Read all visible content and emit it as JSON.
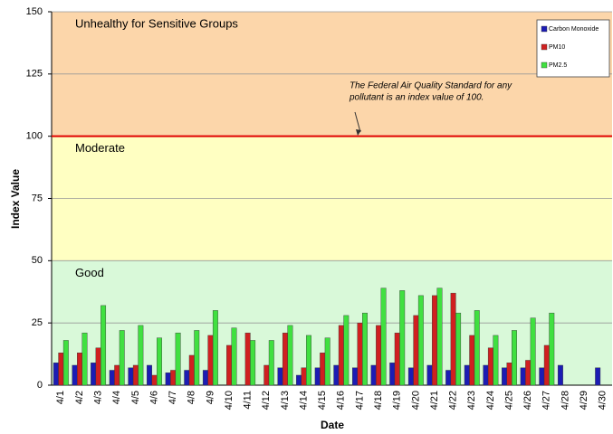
{
  "chart_data": {
    "type": "bar",
    "x_label": "Date",
    "y_label": "Index Value",
    "categories": [
      "4/1",
      "4/2",
      "4/3",
      "4/4",
      "4/5",
      "4/6",
      "4/7",
      "4/8",
      "4/9",
      "4/10",
      "4/11",
      "4/12",
      "4/13",
      "4/14",
      "4/15",
      "4/16",
      "4/17",
      "4/18",
      "4/19",
      "4/20",
      "4/21",
      "4/22",
      "4/23",
      "4/24",
      "4/25",
      "4/26",
      "4/27",
      "4/28",
      "4/29",
      "4/30"
    ],
    "series": [
      {
        "name": "Carbon Monoxide",
        "color": "#1c1cb4",
        "values": [
          9,
          8,
          9,
          6,
          7,
          8,
          5,
          6,
          6,
          null,
          null,
          null,
          7,
          4,
          7,
          8,
          7,
          8,
          9,
          7,
          8,
          6,
          8,
          8,
          7,
          7,
          7,
          8,
          null,
          7
        ]
      },
      {
        "name": "PM10",
        "color": "#d02020",
        "values": [
          13,
          13,
          15,
          8,
          8,
          4,
          6,
          12,
          20,
          16,
          21,
          8,
          21,
          7,
          13,
          24,
          25,
          24,
          21,
          28,
          36,
          37,
          20,
          15,
          9,
          10,
          16,
          null,
          null,
          null
        ]
      },
      {
        "name": "PM2.5",
        "color": "#40e040",
        "values": [
          18,
          21,
          32,
          22,
          24,
          19,
          21,
          22,
          30,
          23,
          18,
          18,
          24,
          20,
          19,
          28,
          29,
          39,
          38,
          36,
          39,
          29,
          30,
          20,
          22,
          27,
          29,
          null,
          null,
          null
        ]
      }
    ],
    "ylim": [
      0,
      150
    ],
    "yticks": [
      0,
      25,
      50,
      75,
      100,
      125,
      150
    ],
    "grid": true,
    "bands": [
      {
        "label": "Good",
        "from": 0,
        "to": 50,
        "color": "#d9f9d9",
        "label_color": "#22a022"
      },
      {
        "label": "Moderate",
        "from": 50,
        "to": 100,
        "color": "#ffffc2",
        "label_color": "#f0a020"
      },
      {
        "label": "Unhealthy for Sensitive Groups",
        "from": 100,
        "to": 150,
        "color": "#fcd6aa",
        "label_color": "#ff2020"
      }
    ],
    "reference_line": {
      "value": 100,
      "color": "#e00000"
    },
    "annotation": [
      "The Federal Air Quality Standard for any",
      "pollutant is an index value of 100."
    ],
    "legend": "top-right"
  }
}
